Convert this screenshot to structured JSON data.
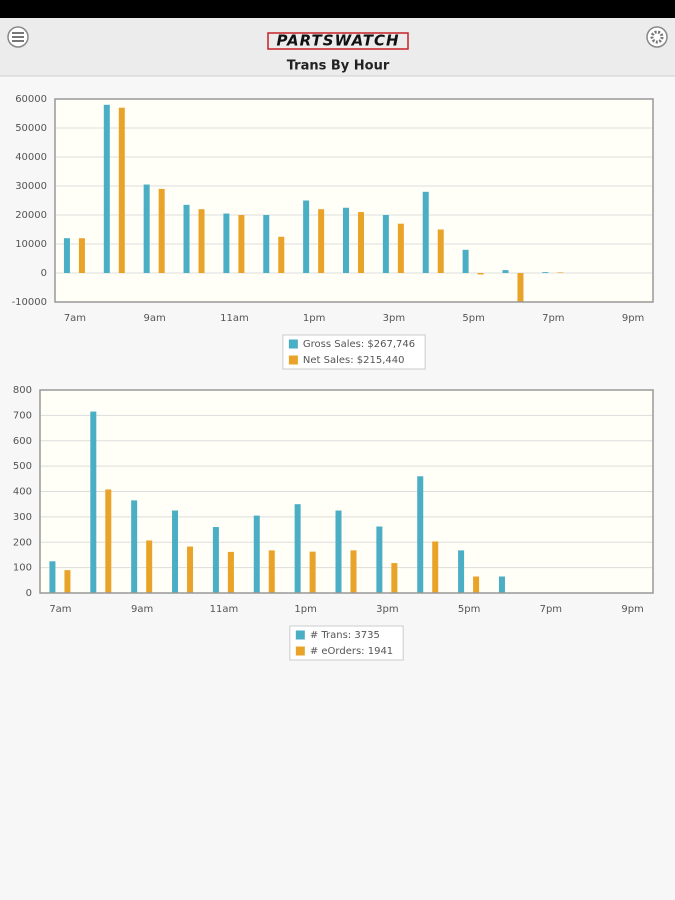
{
  "header": {
    "logo": "PARTSWATCH",
    "title": "Trans By Hour"
  },
  "chart_data": [
    {
      "type": "bar",
      "categories": [
        "7am",
        null,
        "9am",
        null,
        "11am",
        null,
        "1pm",
        null,
        "3pm",
        null,
        "5pm",
        null,
        "7pm",
        null,
        "9pm"
      ],
      "series": [
        {
          "name": "Gross Sales: $267,746",
          "color": "#4aaec5",
          "values": [
            12000,
            58000,
            30500,
            23500,
            20500,
            20000,
            25000,
            22500,
            20000,
            28000,
            8000,
            1000,
            300,
            0,
            0
          ]
        },
        {
          "name": "Net Sales: $215,440",
          "color": "#e9a329",
          "values": [
            12000,
            57000,
            29000,
            22000,
            20000,
            12500,
            22000,
            21000,
            17000,
            15000,
            -500,
            -10000,
            200,
            0,
            0
          ]
        }
      ],
      "ylim": [
        -10000,
        60000
      ],
      "yticks": [
        -10000,
        0,
        10000,
        20000,
        30000,
        40000,
        50000,
        60000
      ],
      "grid": true,
      "legend": "bottom"
    },
    {
      "type": "bar",
      "categories": [
        "7am",
        null,
        "9am",
        null,
        "11am",
        null,
        "1pm",
        null,
        "3pm",
        null,
        "5pm",
        null,
        "7pm",
        null,
        "9pm"
      ],
      "series": [
        {
          "name": "# Trans: 3735",
          "color": "#4aaec5",
          "values": [
            125,
            715,
            365,
            325,
            260,
            305,
            350,
            325,
            262,
            460,
            168,
            65,
            0,
            0,
            0
          ]
        },
        {
          "name": "# eOrders: 1941",
          "color": "#e9a329",
          "values": [
            90,
            408,
            207,
            183,
            162,
            168,
            163,
            168,
            118,
            203,
            65,
            0,
            0,
            0,
            0
          ]
        }
      ],
      "ylim": [
        0,
        800
      ],
      "yticks": [
        0,
        100,
        200,
        300,
        400,
        500,
        600,
        700,
        800
      ],
      "grid": true,
      "legend": "bottom"
    }
  ]
}
